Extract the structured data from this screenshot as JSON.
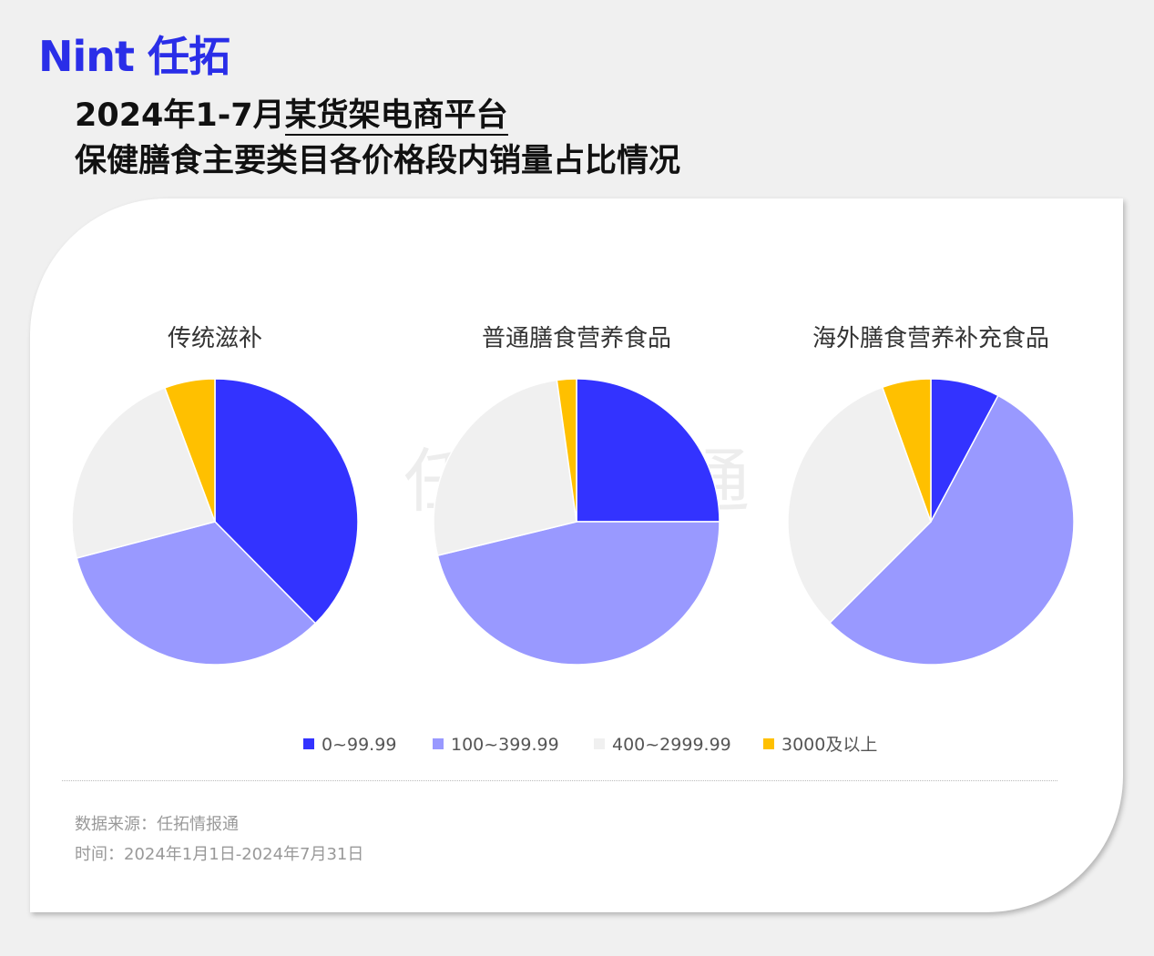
{
  "header": {
    "logo": "Nint 任拓",
    "title_prefix": "2024年1-7月",
    "title_platform": "某货架电商平台",
    "title_line2": "保健膳食主要类目各价格段内销量占比情况"
  },
  "watermark": "任拓情报通",
  "legend": {
    "categories": [
      "0~99.99",
      "100~399.99",
      "400~2999.99",
      "3000及以上"
    ],
    "colors": [
      "#3333ff",
      "#9999ff",
      "#f0f0f0",
      "#ffc000"
    ]
  },
  "chart_data": [
    {
      "type": "pie",
      "title": "传统滋补",
      "values": [
        37.6,
        33.3,
        23.4,
        5.7
      ]
    },
    {
      "type": "pie",
      "title": "普通膳食营养食品",
      "values": [
        25.0,
        46.2,
        26.6,
        2.2
      ]
    },
    {
      "type": "pie",
      "title": "海外膳食营养补充食品",
      "values": [
        7.8,
        54.7,
        32.0,
        5.5
      ]
    }
  ],
  "footer": {
    "source": "数据来源：任拓情报通",
    "time": "时间：2024年1月1日-2024年7月31日"
  }
}
